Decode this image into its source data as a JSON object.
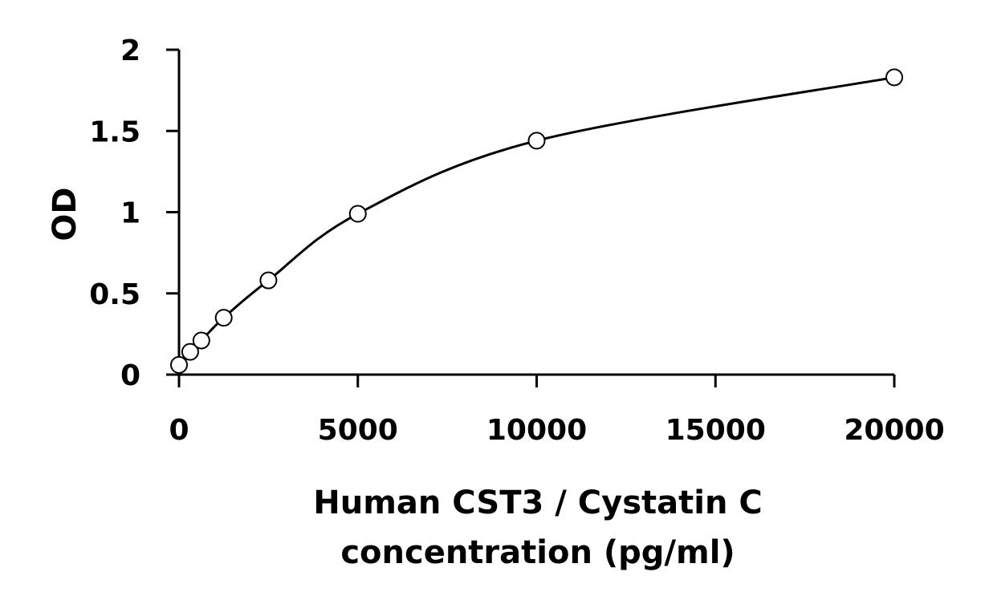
{
  "chart_data": {
    "type": "scatter",
    "title": "",
    "xlabel_lines": [
      "Human CST3 / Cystatin C",
      "concentration (pg/ml)"
    ],
    "ylabel": "OD",
    "xlim": [
      0,
      20000
    ],
    "ylim": [
      0,
      2
    ],
    "xticks": [
      0,
      5000,
      10000,
      15000,
      20000
    ],
    "yticks": [
      0,
      0.5,
      1,
      1.5,
      2
    ],
    "ytick_labels": [
      "0",
      "0.5",
      "1",
      "1.5",
      "2"
    ],
    "grid": false,
    "legend": "none",
    "series": [
      {
        "marker": "open-circle",
        "line": "smooth fitted curve",
        "x": [
          0,
          312.5,
          625,
          1250,
          2500,
          5000,
          10000,
          20000
        ],
        "y": [
          0.06,
          0.14,
          0.21,
          0.35,
          0.58,
          0.99,
          1.44,
          1.83
        ]
      }
    ]
  }
}
